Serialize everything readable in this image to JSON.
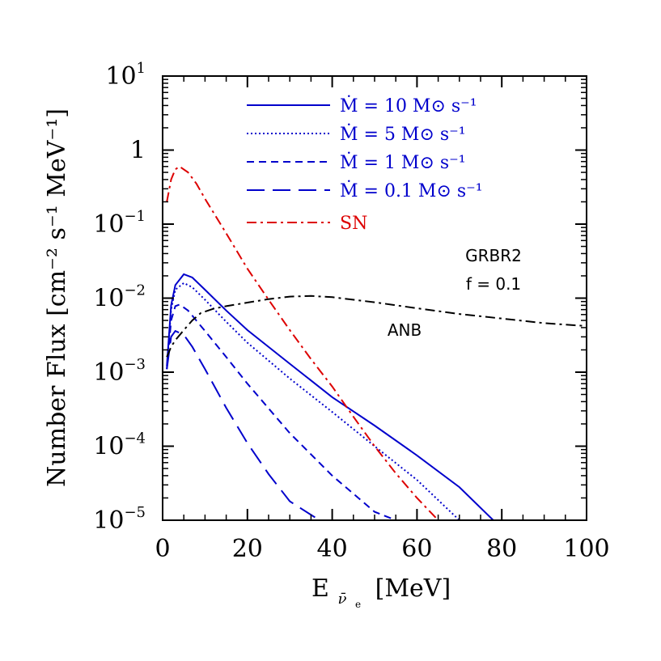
{
  "chart_data": {
    "type": "line",
    "xlabel": "E",
    "xlabel_sub": "ν̄",
    "xlabel_sub2": "e",
    "xlabel_unit": "[MeV]",
    "ylabel": "Number Flux [cm⁻² s⁻¹ MeV⁻¹]",
    "xlim": [
      0,
      100
    ],
    "ylim": [
      1e-05,
      10
    ],
    "yscale": "log",
    "xticks": [
      0,
      20,
      40,
      60,
      80,
      100
    ],
    "xtick_labels": [
      "0",
      "20",
      "40",
      "60",
      "80",
      "100"
    ],
    "yticks": [
      1e-05,
      0.0001,
      0.001,
      0.01,
      0.1,
      1,
      10
    ],
    "ytick_labels": [
      {
        "base": "10",
        "exp": "−5"
      },
      {
        "base": "10",
        "exp": "−4"
      },
      {
        "base": "10",
        "exp": "−3"
      },
      {
        "base": "10",
        "exp": "−2"
      },
      {
        "base": "10",
        "exp": "−1"
      },
      {
        "base": "1",
        "exp": ""
      },
      {
        "base": "10",
        "exp": "1"
      }
    ],
    "legend_position": "top-right",
    "annotations": {
      "model": "GRBR2",
      "f": "f = 0.1",
      "anb": "ANB"
    },
    "series": [
      {
        "name": "Ṁ = 10 M⊙ s⁻¹",
        "color": "#0000cc",
        "dash": "solid",
        "x": [
          1,
          2,
          3,
          5,
          7,
          10,
          15,
          20,
          30,
          40,
          50,
          60,
          70,
          78
        ],
        "y": [
          0.0012,
          0.008,
          0.015,
          0.021,
          0.019,
          0.013,
          0.0068,
          0.0037,
          0.0013,
          0.00046,
          0.00019,
          7.5e-05,
          2.8e-05,
          1e-05
        ]
      },
      {
        "name": "Ṁ = 5 M⊙ s⁻¹",
        "color": "#0000cc",
        "dash": "dotted",
        "x": [
          1,
          2,
          3,
          5,
          7,
          10,
          15,
          20,
          30,
          40,
          50,
          60,
          70
        ],
        "y": [
          0.0011,
          0.007,
          0.013,
          0.016,
          0.014,
          0.0095,
          0.0048,
          0.0025,
          0.00082,
          0.00029,
          0.0001,
          3.5e-05,
          1e-05
        ]
      },
      {
        "name": "Ṁ = 1 M⊙ s⁻¹",
        "color": "#0000cc",
        "dash": "dashed",
        "x": [
          1,
          2,
          3,
          4,
          6,
          10,
          15,
          20,
          30,
          40,
          50,
          55
        ],
        "y": [
          0.0011,
          0.005,
          0.0078,
          0.0082,
          0.0068,
          0.0036,
          0.0016,
          0.0007,
          0.00015,
          4e-05,
          1.3e-05,
          1e-05
        ]
      },
      {
        "name": "Ṁ = 0.1 M⊙ s⁻¹",
        "color": "#0000cc",
        "dash": "longdash",
        "x": [
          1,
          2,
          3,
          5,
          7,
          10,
          15,
          20,
          25,
          30,
          37
        ],
        "y": [
          0.0011,
          0.003,
          0.0036,
          0.0032,
          0.0022,
          0.0011,
          0.00033,
          0.00011,
          4.2e-05,
          1.8e-05,
          1e-05
        ]
      },
      {
        "name": "SN",
        "color": "#dd0000",
        "dash": "dashdot",
        "x": [
          1,
          2,
          3,
          4,
          6,
          8,
          10,
          15,
          20,
          25,
          30,
          35,
          40,
          45,
          50,
          55,
          60,
          65
        ],
        "y": [
          0.2,
          0.4,
          0.55,
          0.6,
          0.5,
          0.35,
          0.22,
          0.075,
          0.025,
          0.0095,
          0.0037,
          0.0015,
          0.00064,
          0.00025,
          0.0001,
          4.3e-05,
          2e-05,
          1e-05
        ]
      },
      {
        "name": "ANB",
        "color": "#000000",
        "dash": "dashdot",
        "x": [
          1,
          2,
          3,
          5,
          7,
          9,
          12,
          15,
          20,
          25,
          30,
          35,
          40,
          50,
          60,
          70,
          80,
          90,
          100
        ],
        "y": [
          0.0016,
          0.0022,
          0.0027,
          0.0037,
          0.005,
          0.0063,
          0.0072,
          0.0078,
          0.0087,
          0.0097,
          0.0105,
          0.0107,
          0.0103,
          0.0088,
          0.0073,
          0.0061,
          0.0053,
          0.0046,
          0.0042
        ]
      }
    ]
  }
}
